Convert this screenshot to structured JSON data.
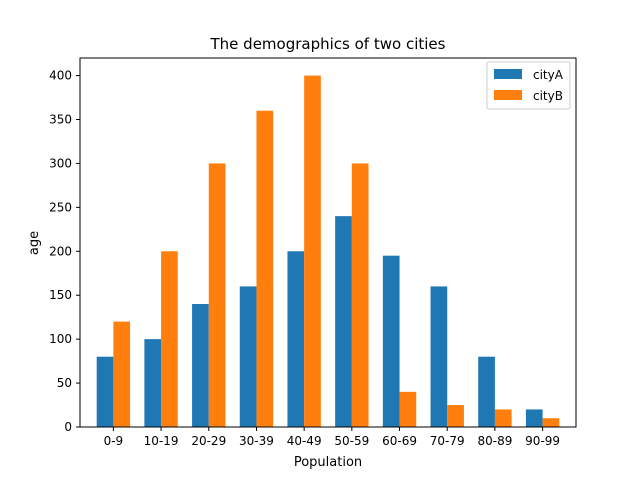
{
  "chart_data": {
    "type": "bar",
    "title": "The demographics of two cities",
    "xlabel": "Population",
    "ylabel": "age",
    "categories": [
      "0-9",
      "10-19",
      "20-29",
      "30-39",
      "40-49",
      "50-59",
      "60-69",
      "70-79",
      "80-89",
      "90-99"
    ],
    "series": [
      {
        "name": "cityA",
        "color": "#1f77b4",
        "values": [
          80,
          100,
          140,
          160,
          200,
          240,
          195,
          160,
          80,
          20
        ]
      },
      {
        "name": "cityB",
        "color": "#ff7f0e",
        "values": [
          120,
          200,
          300,
          360,
          400,
          300,
          40,
          25,
          20,
          10
        ]
      }
    ],
    "ylim": [
      0,
      420
    ],
    "yticks": [
      0,
      50,
      100,
      150,
      200,
      250,
      300,
      350,
      400
    ],
    "grid": false,
    "legend": "top-right"
  }
}
